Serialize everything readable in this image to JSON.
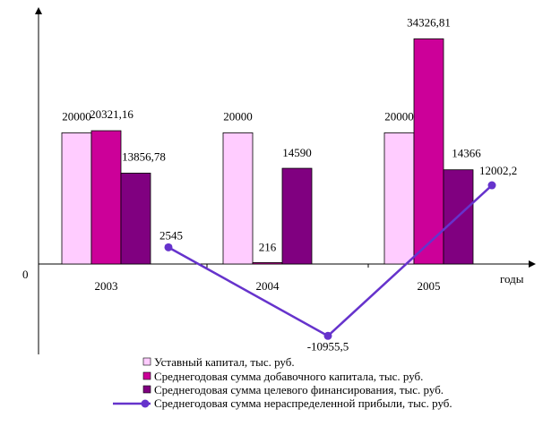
{
  "chart_data": {
    "type": "bar",
    "categories": [
      "2003",
      "2004",
      "2005"
    ],
    "xlabel": "годы",
    "zero_label": "0",
    "series": [
      {
        "name": "Уставный капитал, тыс. руб.",
        "kind": "bar",
        "color": "#ffccff",
        "values": [
          20000,
          20000,
          20000
        ],
        "labels": [
          "20000",
          "20000",
          "20000"
        ]
      },
      {
        "name": "Среднегодовая сумма добавочного капитала, тыс. руб.",
        "kind": "bar",
        "color": "#cc0099",
        "values": [
          20321.16,
          216,
          34326.81
        ],
        "labels": [
          "20321,16",
          "216",
          "34326,81"
        ]
      },
      {
        "name": "Среднегодовая сумма целевого финансирования, тыс. руб.",
        "kind": "bar",
        "color": "#800080",
        "values": [
          13856.78,
          14590,
          14366
        ],
        "labels": [
          "13856,78",
          "14590",
          "14366"
        ]
      },
      {
        "name": "Среднегодовая сумма нераспределенной прибыли, тыс. руб.",
        "kind": "line",
        "color": "#6633cc",
        "values": [
          2545,
          -10955.5,
          12002.2
        ],
        "labels": [
          "2545",
          "-10955,5",
          "12002,2"
        ]
      }
    ],
    "grid": false,
    "legend": "bottom"
  }
}
